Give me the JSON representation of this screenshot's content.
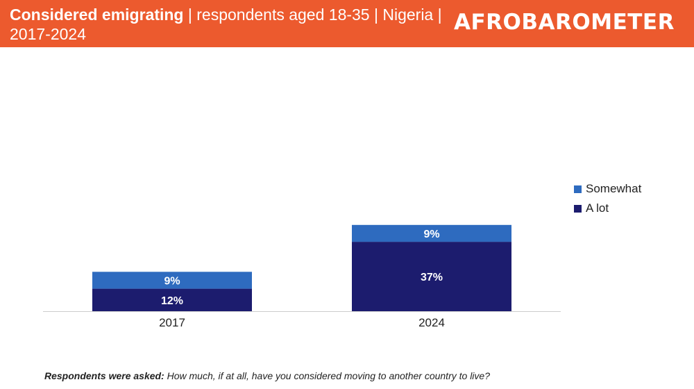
{
  "header": {
    "title_bold": "Considered emigrating",
    "title_rest": " | respondents aged 18-35 | Nigeria | 2017-2024",
    "logo": "AFROBAROMETER"
  },
  "footnote": {
    "bold": "Respondents were asked:",
    "text": " How much, if at all, have you considered moving to another country to live?"
  },
  "colors": {
    "header": "#ec5a2e",
    "a_lot": "#1c1c6e",
    "somewhat": "#2e6bbf"
  },
  "chart_data": {
    "type": "bar",
    "stacked": true,
    "title": "Considered emigrating | respondents aged 18-35 | Nigeria | 2017-2024",
    "categories": [
      "2017",
      "2024"
    ],
    "series": [
      {
        "name": "A lot",
        "values": [
          12,
          37
        ],
        "labels": [
          "12%",
          "37%"
        ],
        "color": "#1c1c6e"
      },
      {
        "name": "Somewhat",
        "values": [
          9,
          9
        ],
        "labels": [
          "9%",
          "9%"
        ],
        "color": "#2e6bbf"
      }
    ],
    "legend_order": [
      "Somewhat",
      "A lot"
    ],
    "ylim": [
      0,
      60
    ],
    "grid": false,
    "legend_position": "right"
  }
}
